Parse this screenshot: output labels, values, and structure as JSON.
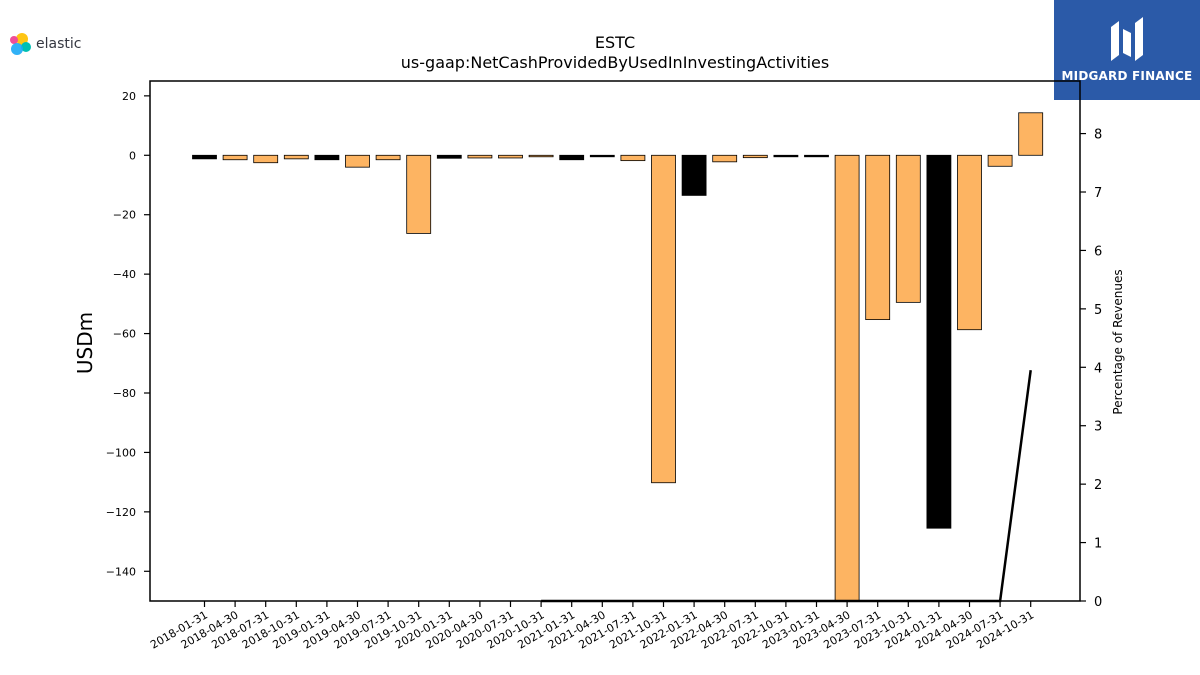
{
  "logos": {
    "left_text": "elastic",
    "right_text": "MIDGARD FINANCE"
  },
  "chart_data": {
    "type": "bar",
    "title": "ESTC",
    "subtitle": "us-gaap:NetCashProvidedByUsedInInvestingActivities",
    "ylabel": "USDm",
    "y2label": "Percentage of Revenues",
    "ylim": [
      -150,
      25
    ],
    "y2lim": [
      0,
      8.9
    ],
    "yticks": [
      20,
      0,
      -20,
      -40,
      -60,
      -80,
      -100,
      -120,
      -140
    ],
    "y2ticks": [
      0,
      1,
      2,
      3,
      4,
      5,
      6,
      7,
      8
    ],
    "grid": false,
    "categories": [
      "2018-01-31",
      "2018-04-30",
      "2018-07-31",
      "2018-10-31",
      "2019-01-31",
      "2019-04-30",
      "2019-07-31",
      "2019-10-31",
      "2020-01-31",
      "2020-04-30",
      "2020-07-31",
      "2020-10-31",
      "2021-01-31",
      "2021-04-30",
      "2021-07-31",
      "2021-10-31",
      "2022-01-31",
      "2022-04-30",
      "2022-07-31",
      "2022-10-31",
      "2023-01-31",
      "2023-04-30",
      "2023-07-31",
      "2023-10-31",
      "2024-01-31",
      "2024-04-30",
      "2024-07-31",
      "2024-10-31"
    ],
    "series": [
      {
        "kind": "bar",
        "values": [
          -1.2,
          -1.5,
          -2.5,
          -1.2,
          -1.5,
          -4.0,
          -1.5,
          -26.3,
          -1.0,
          -0.9,
          -0.9,
          -0.2,
          -1.5,
          -0.5,
          -1.8,
          -110.2,
          -13.5,
          -2.2,
          -0.8,
          -0.5,
          -0.5,
          -150,
          -55.3,
          -49.5,
          -125.5,
          -58.7,
          -3.7,
          14.3
        ],
        "colors": [
          "#000000",
          "#fdb462",
          "#fdb462",
          "#fdb462",
          "#000000",
          "#fdb462",
          "#fdb462",
          "#fdb462",
          "#000000",
          "#fdb462",
          "#fdb462",
          "#fdb462",
          "#000000",
          "#000000",
          "#fdb462",
          "#fdb462",
          "#000000",
          "#fdb462",
          "#fdb462",
          "#000000",
          "#000000",
          "#fdb462",
          "#fdb462",
          "#fdb462",
          "#000000",
          "#fdb462",
          "#fdb462",
          "#fdb462"
        ]
      },
      {
        "kind": "line",
        "axis": "right",
        "color": "#000000",
        "points": [
          {
            "category": "2020-10-31",
            "value": 0.0
          },
          {
            "category": "2024-07-31",
            "value": 0.0
          },
          {
            "category": "2024-10-31",
            "value": 3.95
          }
        ]
      }
    ]
  }
}
